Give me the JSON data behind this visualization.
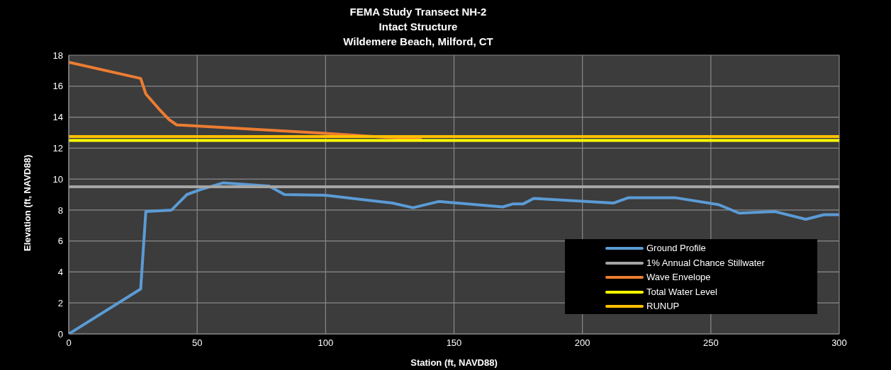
{
  "chart_data": {
    "type": "line",
    "title": "FEMA Study Transect NH-2\nIntact Structure\nWildemere Beach, Milford, CT",
    "xlabel": "Station (ft, NAVD88)",
    "ylabel": "Elevation (ft, NAVD88)",
    "xlim": [
      0,
      300
    ],
    "xticks": [
      0,
      50,
      100,
      150,
      200,
      250,
      300
    ],
    "ylim": [
      0,
      18
    ],
    "yticks": [
      0,
      2,
      4,
      6,
      8,
      10,
      12,
      14,
      16,
      18
    ],
    "grid": true,
    "legend": "bottom right",
    "marker": "none",
    "line_style": "solid",
    "series": [
      {
        "name": "Ground Profile",
        "color": "#5b9bd5",
        "x": [
          0,
          28,
          30,
          40,
          46,
          51,
          60,
          78,
          84,
          100,
          126,
          134,
          144,
          169,
          173,
          177,
          181,
          212,
          218,
          236,
          253,
          261,
          275,
          287,
          294,
          300
        ],
        "values": [
          0,
          2.9,
          7.9,
          8.0,
          9.0,
          9.3,
          9.75,
          9.55,
          9.0,
          8.95,
          8.45,
          8.15,
          8.55,
          8.2,
          8.4,
          8.4,
          8.75,
          8.45,
          8.8,
          8.8,
          8.35,
          7.8,
          7.9,
          7.4,
          7.7,
          7.7
        ]
      },
      {
        "name": "1% Annual Chance Stillwater",
        "color": "#a5a5a5",
        "x": [
          0,
          300
        ],
        "values": [
          9.5,
          9.5
        ]
      },
      {
        "name": "Wave Envelope",
        "color": "#ed7d31",
        "x": [
          0,
          28,
          30,
          35,
          39,
          42,
          100,
          137.5
        ],
        "values": [
          17.55,
          16.5,
          15.5,
          14.55,
          13.85,
          13.5,
          12.95,
          12.55
        ]
      },
      {
        "name": "Total Water Level",
        "color": "#ffff00",
        "x": [
          0,
          300
        ],
        "values": [
          12.5,
          12.5
        ]
      },
      {
        "name": "RUNUP",
        "color": "#ffc000",
        "x": [
          0,
          300
        ],
        "values": [
          12.75,
          12.75
        ]
      }
    ]
  }
}
